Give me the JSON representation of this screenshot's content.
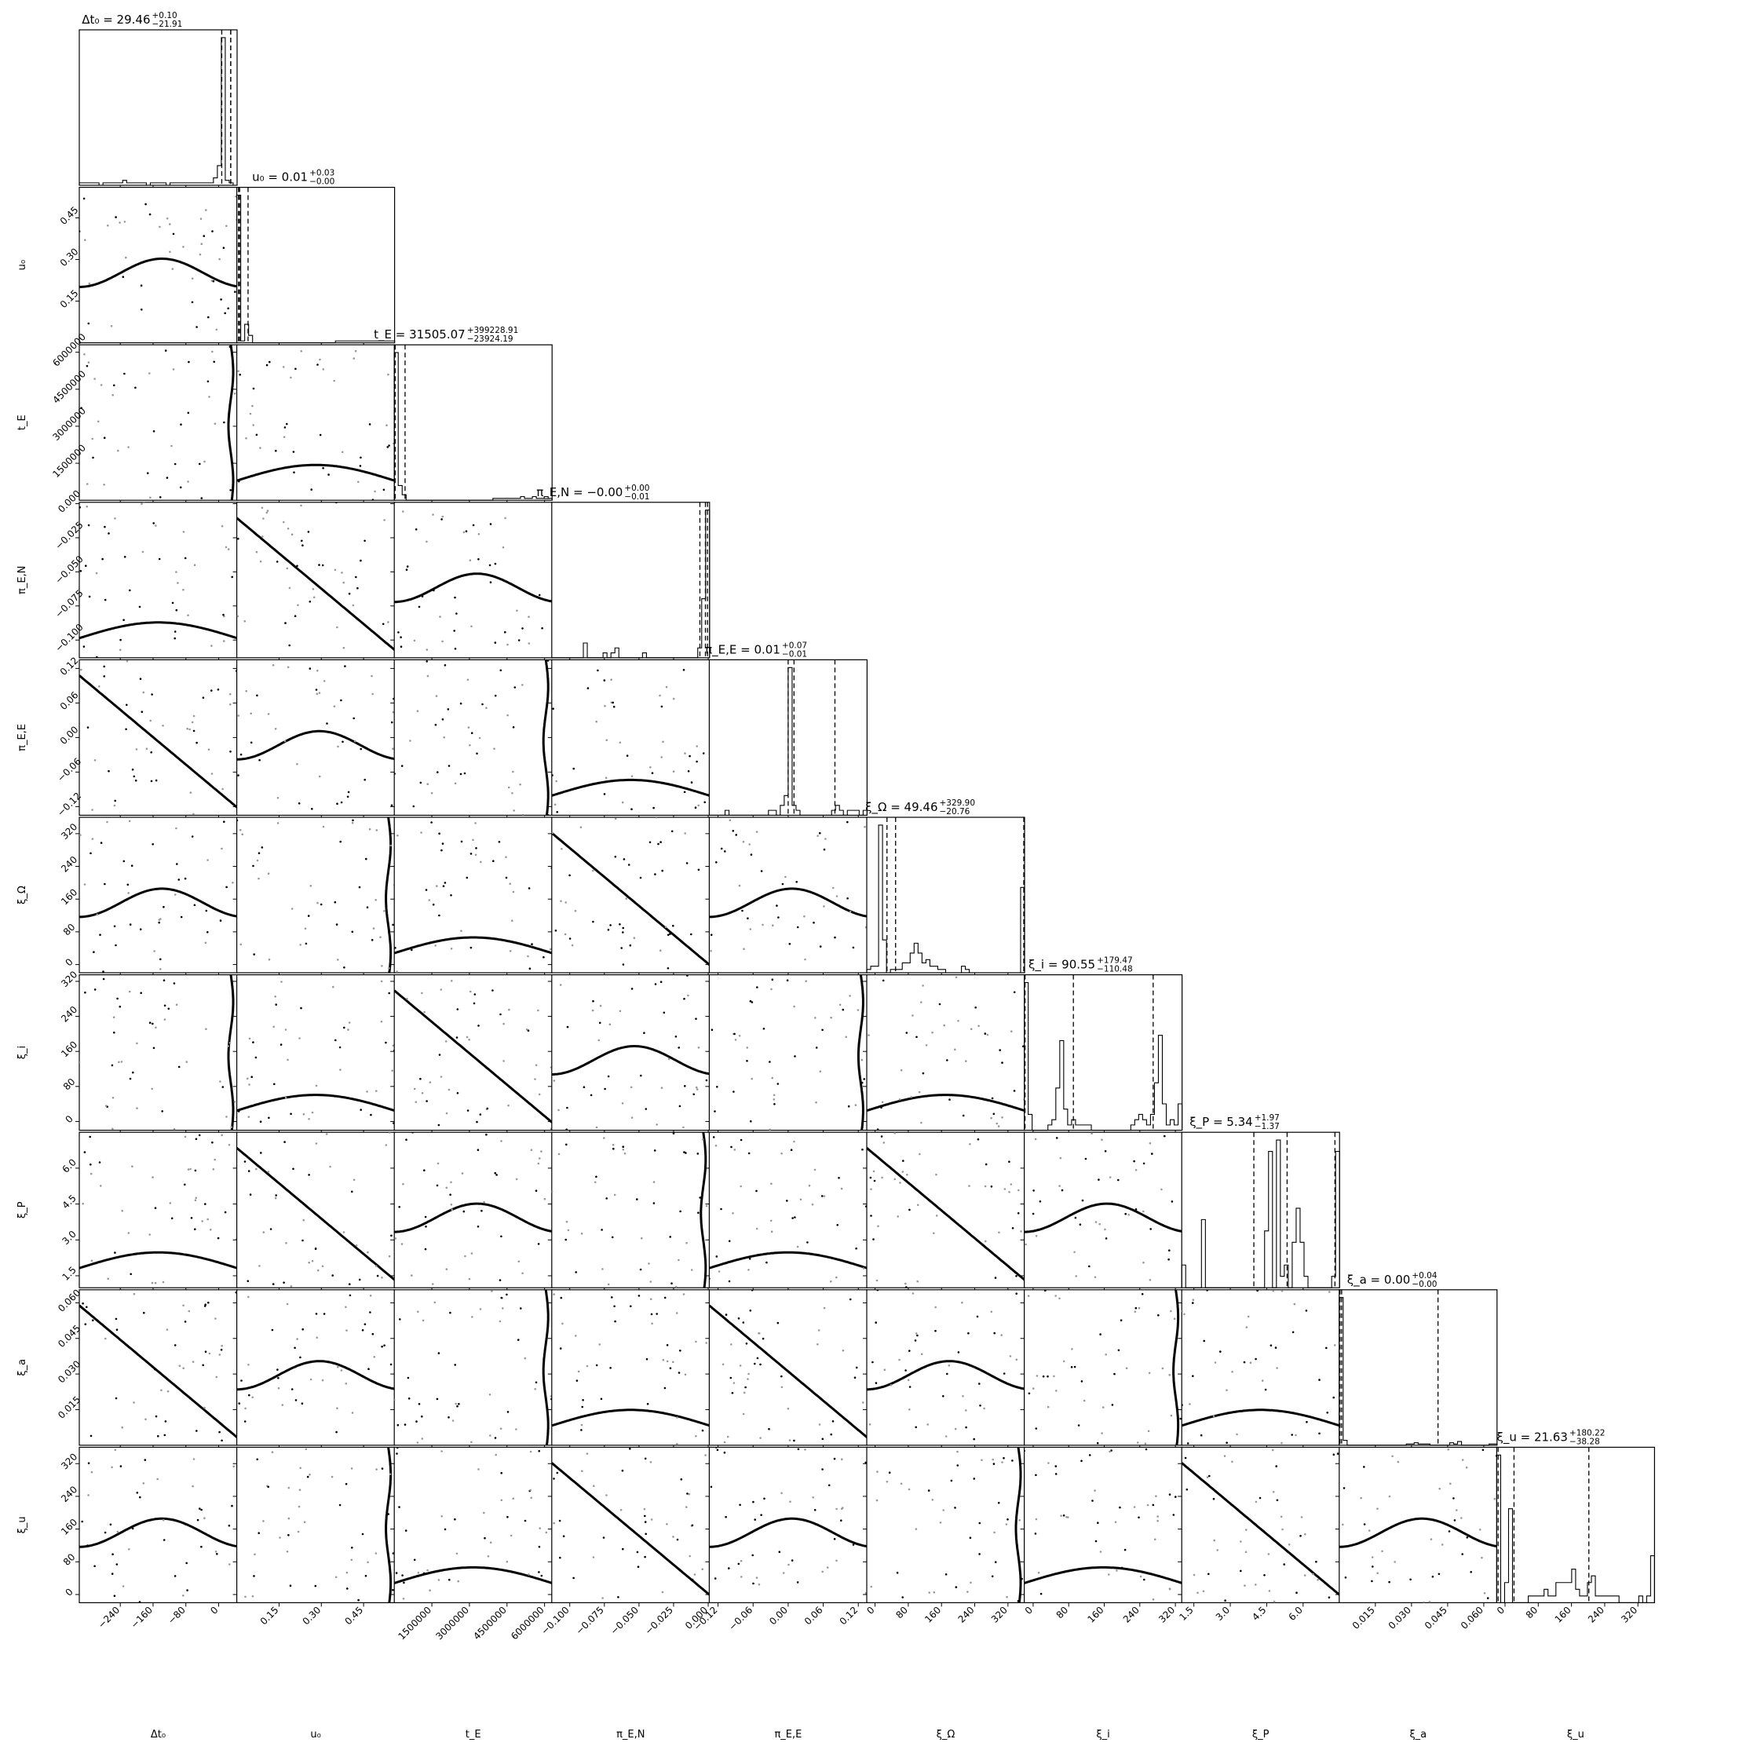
{
  "chart_data": {
    "type": "corner",
    "parameters": [
      {
        "name": "dt0",
        "axis_label": "Δt₀",
        "title_main": "Δt₀ = 29.46",
        "title_up": "+0.10",
        "title_down": "−21.91",
        "range": [
          -340,
          45
        ],
        "ticks": [
          -240,
          -160,
          -80,
          0
        ],
        "tick_labels": [
          "−240",
          "−160",
          "−80",
          "0"
        ],
        "quantiles": [
          7.55,
          29.46,
          29.56
        ],
        "hist_values": [
          1,
          1,
          1,
          1,
          1,
          0,
          1,
          1,
          1,
          1,
          1,
          2,
          1,
          1,
          1,
          1,
          1,
          0,
          1,
          1,
          1,
          1,
          0,
          1,
          1,
          1,
          1,
          1,
          1,
          1,
          1,
          1,
          1,
          1,
          3,
          8,
          60,
          2,
          1,
          0
        ]
      },
      {
        "name": "u0",
        "axis_label": "u₀",
        "title_main": "u₀ = 0.01",
        "title_up": "+0.03",
        "title_down": "−0.00",
        "range": [
          0.0,
          0.56
        ],
        "ticks": [
          0.15,
          0.3,
          0.45
        ],
        "tick_labels": [
          "0.15",
          "0.30",
          "0.45"
        ],
        "quantiles": [
          0.006,
          0.01,
          0.04
        ],
        "hist_values": [
          80,
          1,
          10,
          4,
          0,
          0,
          0,
          0,
          0,
          0,
          0,
          0,
          0,
          0,
          0,
          0,
          0,
          0,
          0,
          0,
          0,
          0,
          0,
          0,
          0,
          1,
          1,
          1,
          1,
          1,
          1,
          1,
          1,
          1,
          1,
          1,
          1,
          1,
          1,
          1
        ]
      },
      {
        "name": "tE",
        "axis_label": "t_E",
        "title_main": "t_E = 31505.07",
        "title_up": "+399228.91",
        "title_down": "−23924.19",
        "range": [
          0,
          6300000
        ],
        "ticks": [
          1500000,
          3000000,
          4500000,
          6000000
        ],
        "tick_labels": [
          "1500000",
          "3000000",
          "4500000",
          "6000000"
        ],
        "quantiles": [
          7581,
          31505,
          430734
        ],
        "hist_values": [
          80,
          8,
          3,
          0,
          0,
          0,
          0,
          0,
          0,
          0,
          0,
          0,
          0,
          0,
          0,
          0,
          0,
          0,
          0,
          0,
          0,
          0,
          0,
          0,
          0,
          1,
          1,
          1,
          1,
          1,
          1,
          1,
          2,
          1,
          1,
          2,
          1,
          1,
          2,
          1
        ]
      },
      {
        "name": "piEN",
        "axis_label": "π_E,N",
        "title_main": "π_E,N = −0.00",
        "title_up": "+0.00",
        "title_down": "−0.01",
        "range": [
          -0.113,
          0.001
        ],
        "ticks": [
          -0.1,
          -0.075,
          -0.05,
          -0.025,
          0.0
        ],
        "tick_labels": [
          "−0.100",
          "−0.075",
          "−0.050",
          "−0.025",
          "0.000"
        ],
        "quantiles": [
          -0.006,
          -0.002,
          -0.0005
        ],
        "hist_values": [
          0,
          0,
          0,
          0,
          0,
          0,
          0,
          0,
          3,
          0,
          0,
          0,
          0,
          1,
          0,
          1,
          2,
          0,
          0,
          0,
          0,
          0,
          0,
          1,
          0,
          0,
          0,
          0,
          0,
          0,
          0,
          0,
          0,
          0,
          0,
          0,
          0,
          2,
          12,
          30
        ]
      },
      {
        "name": "piEE",
        "axis_label": "π_E,E",
        "title_main": "π_E,E = 0.01",
        "title_up": "+0.07",
        "title_down": "−0.01",
        "range": [
          -0.135,
          0.135
        ],
        "ticks": [
          -0.12,
          -0.06,
          0.0,
          0.06,
          0.12
        ],
        "tick_labels": [
          "−0.12",
          "−0.06",
          "0.00",
          "0.06",
          "0.12"
        ],
        "quantiles": [
          0.0,
          0.01,
          0.08
        ],
        "hist_values": [
          0,
          0,
          0,
          0,
          1,
          0,
          0,
          0,
          0,
          0,
          0,
          0,
          0,
          0,
          0,
          1,
          1,
          0,
          2,
          4,
          30,
          2,
          1,
          0,
          0,
          0,
          0,
          0,
          0,
          0,
          0,
          1,
          2,
          1,
          0,
          1,
          1,
          1,
          0,
          1
        ]
      },
      {
        "name": "xiOmega",
        "axis_label": "ξ_Ω",
        "title_main": "ξ_Ω = 49.46",
        "title_up": "+329.90",
        "title_down": "−20.76",
        "range": [
          -20,
          360
        ],
        "ticks": [
          0,
          80,
          160,
          240,
          320
        ],
        "tick_labels": [
          "0",
          "80",
          "160",
          "240",
          "320"
        ],
        "quantiles": [
          28.7,
          49.46,
          379.36
        ],
        "hist_values": [
          1,
          2,
          2,
          45,
          10,
          0,
          1,
          1,
          1,
          3,
          3,
          6,
          9,
          6,
          3,
          4,
          2,
          2,
          1,
          1,
          0,
          0,
          0,
          0,
          2,
          1,
          0,
          0,
          0,
          0,
          0,
          0,
          0,
          0,
          0,
          0,
          0,
          0,
          0,
          26
        ]
      },
      {
        "name": "xii",
        "axis_label": "ξ_i",
        "title_main": "ξ_i = 90.55",
        "title_up": "+179.47",
        "title_down": "−110.48",
        "range": [
          -20,
          335
        ],
        "ticks": [
          0,
          80,
          160,
          240,
          320
        ],
        "tick_labels": [
          "0",
          "80",
          "160",
          "240",
          "320"
        ],
        "quantiles": [
          -19.9,
          90.55,
          270.02
        ],
        "hist_values": [
          28,
          3,
          0,
          0,
          0,
          0,
          1,
          2,
          8,
          17,
          4,
          1,
          2,
          1,
          1,
          1,
          1,
          0,
          0,
          0,
          0,
          0,
          0,
          0,
          0,
          0,
          0,
          1,
          2,
          3,
          2,
          1,
          3,
          9,
          18,
          5,
          1,
          2,
          1,
          5
        ]
      },
      {
        "name": "xiP",
        "axis_label": "ξ_P",
        "title_main": "ξ_P = 5.34",
        "title_up": "+1.97",
        "title_down": "−1.37",
        "range": [
          1.0,
          7.5
        ],
        "ticks": [
          1.5,
          3.0,
          4.5,
          6.0
        ],
        "tick_labels": [
          "1.5",
          "3.0",
          "4.5",
          "6.0"
        ],
        "quantiles": [
          3.97,
          5.34,
          7.31
        ],
        "hist_values": [
          2,
          0,
          0,
          0,
          0,
          6,
          0,
          0,
          0,
          0,
          0,
          0,
          0,
          0,
          0,
          0,
          0,
          0,
          0,
          0,
          0,
          5,
          12,
          0,
          13,
          1,
          2,
          0,
          4,
          7,
          4,
          1,
          0,
          0,
          0,
          0,
          0,
          0,
          1,
          12
        ]
      },
      {
        "name": "xia",
        "axis_label": "ξ_a",
        "title_main": "ξ_a = 0.00",
        "title_up": "+0.04",
        "title_down": "−0.00",
        "range": [
          0.0,
          0.0655
        ],
        "ticks": [
          0.015,
          0.03,
          0.045,
          0.06
        ],
        "tick_labels": [
          "0.015",
          "0.030",
          "0.045",
          "0.060"
        ],
        "quantiles": [
          0.0002,
          0.001,
          0.041
        ],
        "hist_values": [
          120,
          4,
          0,
          0,
          0,
          0,
          0,
          0,
          0,
          0,
          0,
          0,
          0,
          0,
          0,
          0,
          0,
          1,
          1,
          2,
          1,
          1,
          1,
          0,
          0,
          0,
          0,
          0,
          2,
          1,
          3,
          0,
          0,
          0,
          0,
          0,
          0,
          0,
          1,
          1
        ]
      },
      {
        "name": "xiu",
        "axis_label": "ξ_u",
        "title_main": "ξ_u = 21.63",
        "title_up": "+180.22",
        "title_down": "−38.28",
        "range": [
          -20,
          360
        ],
        "ticks": [
          0,
          80,
          160,
          240,
          320
        ],
        "tick_labels": [
          "0",
          "80",
          "160",
          "240",
          "320"
        ],
        "quantiles": [
          -16.65,
          21.63,
          201.85
        ],
        "hist_values": [
          22,
          0,
          3,
          14,
          0,
          0,
          0,
          0,
          1,
          1,
          1,
          1,
          2,
          1,
          1,
          3,
          3,
          3,
          3,
          5,
          2,
          1,
          1,
          3,
          4,
          1,
          1,
          1,
          1,
          1,
          1,
          0,
          0,
          0,
          0,
          0,
          1,
          0,
          1,
          7
        ]
      }
    ],
    "quantile_levels": [
      0.16,
      0.5,
      0.84
    ],
    "plot_kind": "corner plot with 1D histograms on the diagonal and 2D density contours / scatter below"
  }
}
